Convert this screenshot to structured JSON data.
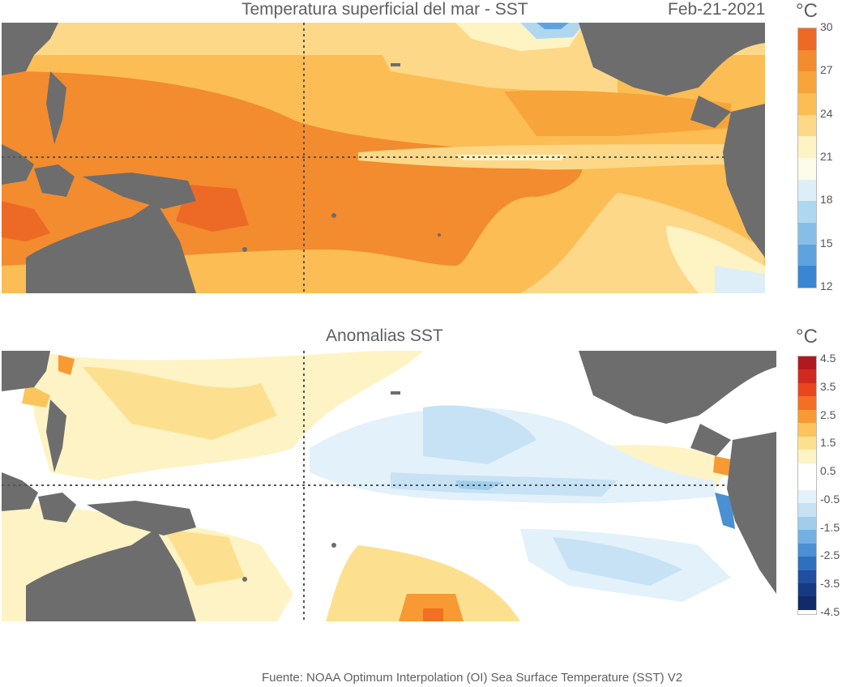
{
  "top_panel": {
    "title": "Temperatura superficial del mar - SST",
    "date": "Feb-21-2021",
    "unit": "°C",
    "colorbar": {
      "ticks": [
        "30",
        "27",
        "24",
        "21",
        "18",
        "15",
        "12"
      ],
      "colors": [
        "#ec6a26",
        "#f38b2f",
        "#f7a43a",
        "#fbbd54",
        "#fdd888",
        "#fdf3c3",
        "#fdfbe9",
        "#ddeef8",
        "#b0d7f0",
        "#86bee7",
        "#5ea3de",
        "#3a86d2"
      ]
    }
  },
  "bottom_panel": {
    "title": "Anomalias SST",
    "unit": "°C",
    "colorbar": {
      "ticks": [
        "4.5",
        "3.5",
        "2.5",
        "1.5",
        "0.5",
        "-0.5",
        "-1.5",
        "-2.5",
        "-3.5",
        "-4.5"
      ],
      "colors": [
        "#b0191e",
        "#d02a20",
        "#e7461f",
        "#f36f22",
        "#f89a33",
        "#fcc45d",
        "#fde08f",
        "#fef3c4",
        "#ffffff",
        "#ffffff",
        "#e3f1fa",
        "#c6e2f4",
        "#a0cdec",
        "#72b1e1",
        "#4a90d2",
        "#2f6fbf",
        "#1f4f9e",
        "#183a80",
        "#12296a"
      ]
    }
  },
  "land_color": "#6d6d6d",
  "source": "Fuente: NOAA Optimum Interpolation (OI) Sea Surface Temperature (SST) V2"
}
